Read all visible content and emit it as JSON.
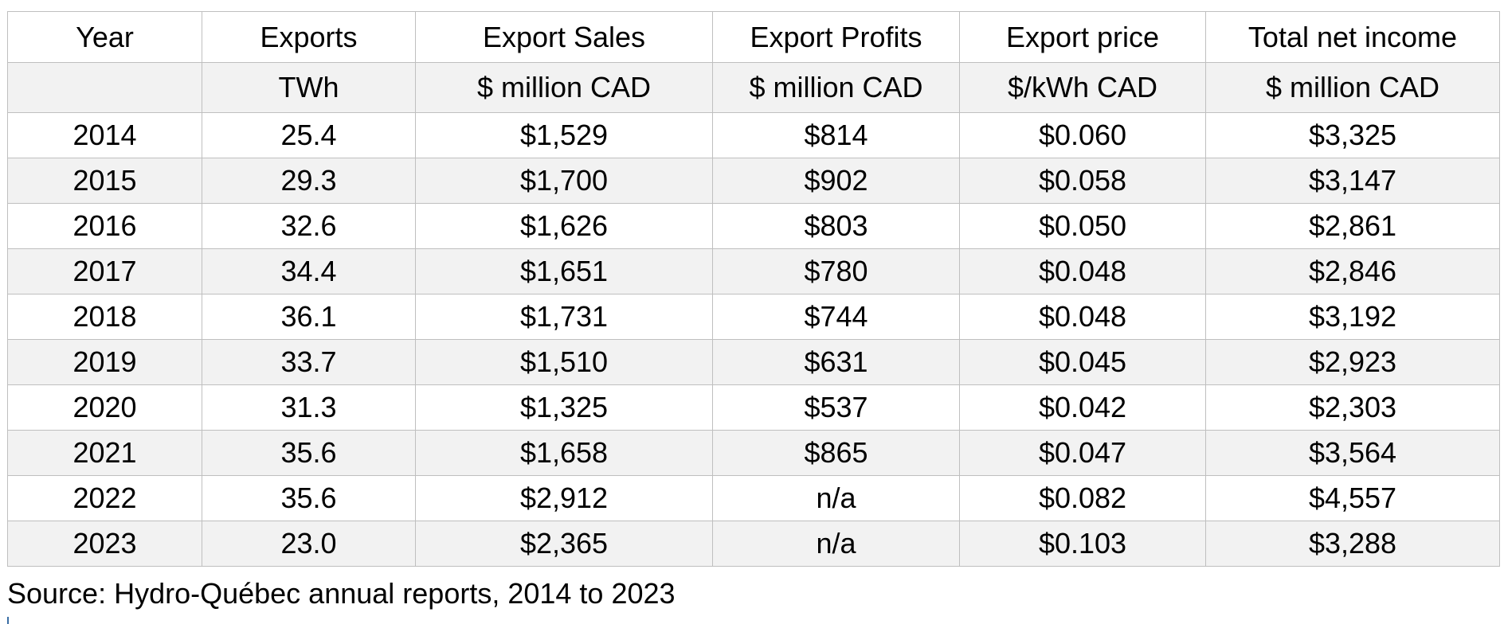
{
  "table": {
    "headers": [
      "Year",
      "Exports",
      "Export Sales",
      "Export Profits",
      "Export price",
      "Total net income"
    ],
    "units": [
      "",
      "TWh",
      "$ million CAD",
      "$ million CAD",
      "$/kWh CAD",
      "$ million CAD"
    ],
    "rows": [
      [
        "2014",
        "25.4",
        "$1,529",
        "$814",
        "$0.060",
        "$3,325"
      ],
      [
        "2015",
        "29.3",
        "$1,700",
        "$902",
        "$0.058",
        "$3,147"
      ],
      [
        "2016",
        "32.6",
        "$1,626",
        "$803",
        "$0.050",
        "$2,861"
      ],
      [
        "2017",
        "34.4",
        "$1,651",
        "$780",
        "$0.048",
        "$2,846"
      ],
      [
        "2018",
        "36.1",
        "$1,731",
        "$744",
        "$0.048",
        "$3,192"
      ],
      [
        "2019",
        "33.7",
        "$1,510",
        "$631",
        "$0.045",
        "$2,923"
      ],
      [
        "2020",
        "31.3",
        "$1,325",
        "$537",
        "$0.042",
        "$2,303"
      ],
      [
        "2021",
        "35.6",
        "$1,658",
        "$865",
        "$0.047",
        "$3,564"
      ],
      [
        "2022",
        "35.6",
        "$2,912",
        "n/a",
        "$0.082",
        "$4,557"
      ],
      [
        "2023",
        "23.0",
        "$2,365",
        "n/a",
        "$0.103",
        "$3,288"
      ]
    ]
  },
  "source": "Source: Hydro-Québec annual reports, 2014 to 2023"
}
